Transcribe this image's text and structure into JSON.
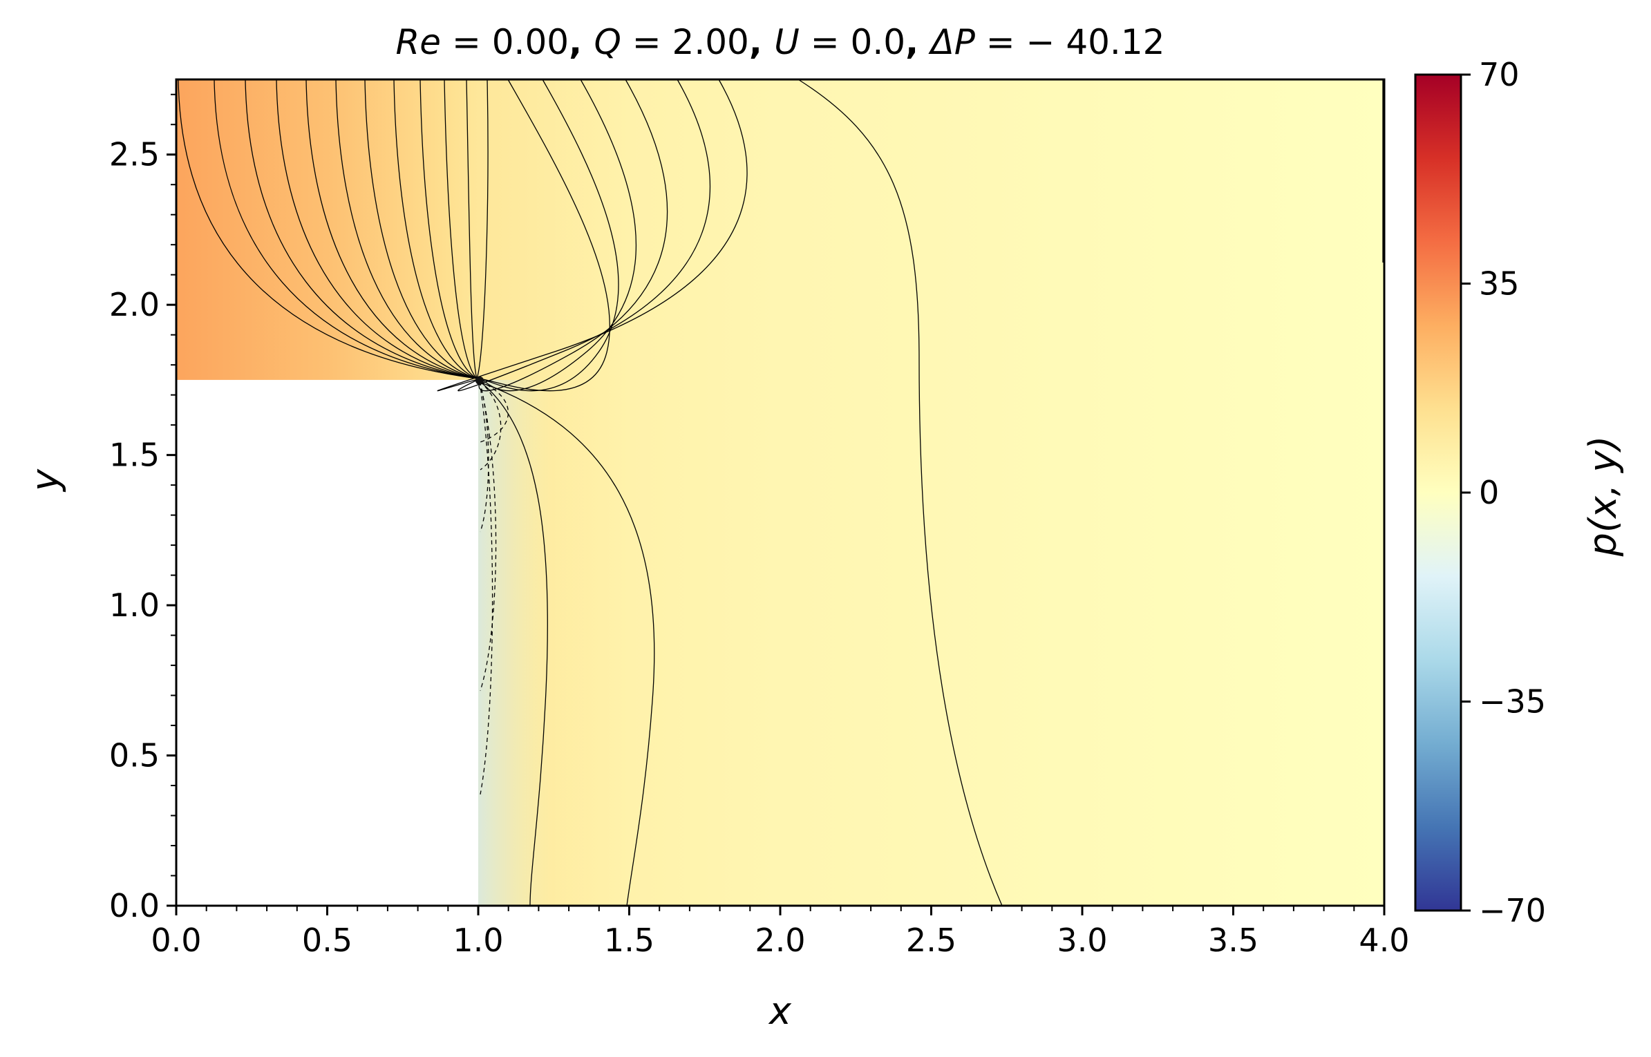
{
  "chart_data": {
    "type": "heatmap",
    "title": "Re = 0.00, Q = 2.00, U = 0.0, ΔP = −40.12",
    "title_parts": [
      {
        "text": "Re",
        "italic": true
      },
      {
        "text": " = 0.00",
        "italic": false
      },
      {
        "text": ", ",
        "italic": false,
        "bold": true
      },
      {
        "text": "Q",
        "italic": true
      },
      {
        "text": " = 2.00",
        "italic": false
      },
      {
        "text": ", ",
        "italic": false,
        "bold": true
      },
      {
        "text": "U",
        "italic": true
      },
      {
        "text": " = 0.0",
        "italic": false
      },
      {
        "text": ", ",
        "italic": false,
        "bold": true
      },
      {
        "text": "ΔP",
        "italic": true
      },
      {
        "text": " = − 40.12",
        "italic": false
      }
    ],
    "xlabel": "x",
    "ylabel": "y",
    "colorbar_label": "p(x, y)",
    "xlim": [
      0.0,
      4.0
    ],
    "ylim": [
      0.0,
      2.75
    ],
    "x_ticks": [
      0.0,
      0.5,
      1.0,
      1.5,
      2.0,
      2.5,
      3.0,
      3.5,
      4.0
    ],
    "x_tick_labels": [
      "0.0",
      "0.5",
      "1.0",
      "1.5",
      "2.0",
      "2.5",
      "3.0",
      "3.5",
      "4.0"
    ],
    "y_ticks": [
      0.0,
      0.5,
      1.0,
      1.5,
      2.0,
      2.5
    ],
    "y_tick_labels": [
      "0.0",
      "0.5",
      "1.0",
      "1.5",
      "2.0",
      "2.5"
    ],
    "colorbar_range": [
      -70,
      70
    ],
    "colorbar_ticks": [
      70,
      35,
      0,
      -35,
      -70
    ],
    "colorbar_tick_labels": [
      "70",
      "35",
      "0",
      "−35",
      "−70"
    ],
    "colormap": "RdYlBu_r",
    "colormap_stops": [
      "#313695",
      "#4575b4",
      "#74add1",
      "#abd9e9",
      "#e0f3f8",
      "#ffffbf",
      "#fee090",
      "#fdae61",
      "#f46d43",
      "#d73027",
      "#a50026"
    ],
    "step_geometry": {
      "x_step": 1.0,
      "y_step": 1.75
    },
    "inlet_pressure_profile": [
      {
        "x": 0.0,
        "p": 30.0
      },
      {
        "x": 0.5,
        "p": 23.0
      },
      {
        "x": 0.9,
        "p": 14.0
      },
      {
        "x": 1.0,
        "p": 11.0
      },
      {
        "x": 1.5,
        "p": 6.0
      },
      {
        "x": 2.0,
        "p": 4.0
      },
      {
        "x": 2.5,
        "p": 3.0
      },
      {
        "x": 4.0,
        "p": 0.0
      }
    ],
    "grid": false
  }
}
